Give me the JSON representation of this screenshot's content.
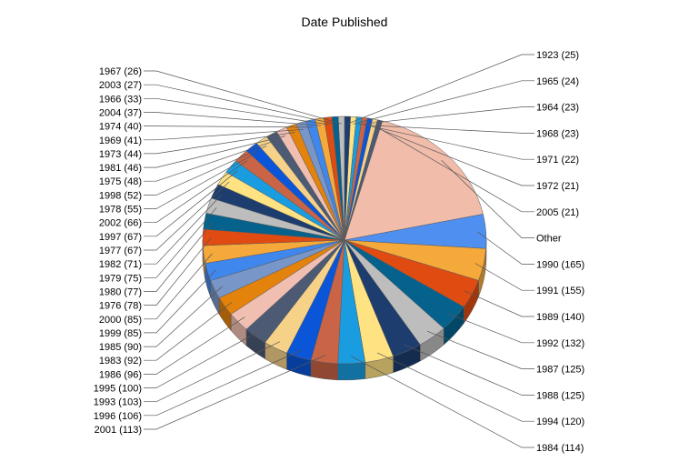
{
  "chart_data": {
    "type": "pie",
    "title": "Date Published",
    "slices": [
      {
        "label": "1990 (165)",
        "value": 165,
        "color": "#4f8fef"
      },
      {
        "label": "1991 (155)",
        "value": 155,
        "color": "#f6a93b"
      },
      {
        "label": "1989 (140)",
        "value": 140,
        "color": "#e04b12"
      },
      {
        "label": "1992 (132)",
        "value": 132,
        "color": "#04628d"
      },
      {
        "label": "1987 (125)",
        "value": 125,
        "color": "#bdbdbd"
      },
      {
        "label": "1988 (125)",
        "value": 125,
        "color": "#1c3d6e"
      },
      {
        "label": "1994 (120)",
        "value": 120,
        "color": "#ffe383"
      },
      {
        "label": "1984 (114)",
        "value": 114,
        "color": "#1a9de0"
      },
      {
        "label": "2001 (113)",
        "value": 113,
        "color": "#c96446"
      },
      {
        "label": "1996 (106)",
        "value": 106,
        "color": "#0a55d8"
      },
      {
        "label": "1993 (103)",
        "value": 103,
        "color": "#f6d289"
      },
      {
        "label": "1995 (100)",
        "value": 100,
        "color": "#4c5a74"
      },
      {
        "label": "1986 (96)",
        "value": 96,
        "color": "#f1bfb2"
      },
      {
        "label": "1983 (92)",
        "value": 92,
        "color": "#e4830c"
      },
      {
        "label": "1985 (90)",
        "value": 90,
        "color": "#7896c7"
      },
      {
        "label": "1999 (85)",
        "value": 85,
        "color": "#3f87ec"
      },
      {
        "label": "2000 (85)",
        "value": 85,
        "color": "#f6a93b"
      },
      {
        "label": "1976 (78)",
        "value": 78,
        "color": "#e04b12"
      },
      {
        "label": "1980 (77)",
        "value": 77,
        "color": "#04628d"
      },
      {
        "label": "1979 (75)",
        "value": 75,
        "color": "#bdbdbd"
      },
      {
        "label": "1982 (71)",
        "value": 71,
        "color": "#1c3d6e"
      },
      {
        "label": "1977 (67)",
        "value": 67,
        "color": "#ffe383"
      },
      {
        "label": "1997 (67)",
        "value": 67,
        "color": "#1a9de0"
      },
      {
        "label": "2002 (66)",
        "value": 66,
        "color": "#c96446"
      },
      {
        "label": "1978 (55)",
        "value": 55,
        "color": "#0a55d8"
      },
      {
        "label": "1998 (52)",
        "value": 52,
        "color": "#f6d289"
      },
      {
        "label": "1975 (48)",
        "value": 48,
        "color": "#4c5a74"
      },
      {
        "label": "1981 (46)",
        "value": 46,
        "color": "#f1bfb2"
      },
      {
        "label": "1973 (44)",
        "value": 44,
        "color": "#e4830c"
      },
      {
        "label": "1969 (41)",
        "value": 41,
        "color": "#7896c7"
      },
      {
        "label": "1974 (40)",
        "value": 40,
        "color": "#3f87ec"
      },
      {
        "label": "2004 (37)",
        "value": 37,
        "color": "#f6a93b"
      },
      {
        "label": "1966 (33)",
        "value": 33,
        "color": "#e04b12"
      },
      {
        "label": "2003 (27)",
        "value": 27,
        "color": "#04628d"
      },
      {
        "label": "1967 (26)",
        "value": 26,
        "color": "#bdbdbd"
      },
      {
        "label": "1923 (25)",
        "value": 25,
        "color": "#1c3d6e"
      },
      {
        "label": "1965 (24)",
        "value": 24,
        "color": "#ffe383"
      },
      {
        "label": "1964 (23)",
        "value": 23,
        "color": "#1a9de0"
      },
      {
        "label": "1968 (23)",
        "value": 23,
        "color": "#c96446"
      },
      {
        "label": "1971 (22)",
        "value": 22,
        "color": "#0a55d8"
      },
      {
        "label": "1972 (21)",
        "value": 21,
        "color": "#f6d289"
      },
      {
        "label": "2005 (21)",
        "value": 21,
        "color": "#4c5a74"
      },
      {
        "label": "Other",
        "value": 640,
        "color": "#f1bcaa"
      }
    ]
  }
}
